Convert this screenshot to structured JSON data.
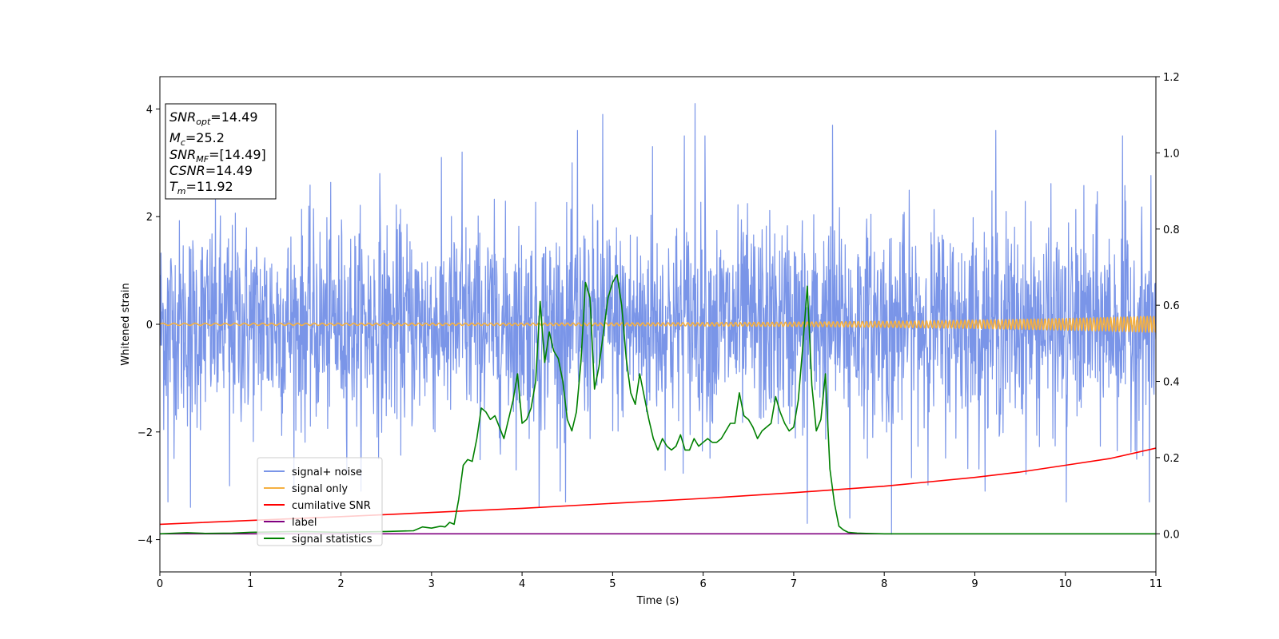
{
  "chart_data": {
    "type": "line",
    "xlabel": "Time (s)",
    "ylabel": "Whitened strain",
    "xlim": [
      0,
      11
    ],
    "ylim": [
      -4.6,
      4.6
    ],
    "y2lim": [
      -0.1,
      1.2
    ],
    "xticks": [
      0,
      1,
      2,
      3,
      4,
      5,
      6,
      7,
      8,
      9,
      10,
      11
    ],
    "yticks": [
      -4,
      -2,
      0,
      2,
      4
    ],
    "y2ticks": [
      0.0,
      0.2,
      0.4,
      0.6,
      0.8,
      1.0,
      1.2
    ],
    "y2tick_labels": [
      "0.0",
      "0.2",
      "0.4",
      "0.6",
      "0.8",
      "1.0",
      "1.2"
    ],
    "grid": false,
    "legend_position": "lower-left",
    "annotation": {
      "snr_opt": {
        "base": "SNR",
        "sub": "opt",
        "value": "=14.49"
      },
      "mc": {
        "base": "M",
        "sub": "c",
        "value": "=25.2"
      },
      "snr_mf": {
        "base": "SNR",
        "sub": "MF",
        "value": "=[14.49]"
      },
      "csnr": {
        "base": "CSNR",
        "value": "=14.49"
      },
      "tm": {
        "base": "T",
        "sub": "m",
        "value": "=11.92"
      }
    },
    "series": [
      {
        "name": "signal+ noise",
        "color": "#7a95e8",
        "axis": "left",
        "kind": "noise",
        "std": 0.95,
        "peaks": [
          [
            0.09,
            -3.3
          ],
          [
            0.34,
            -3.4
          ],
          [
            0.77,
            -3.0
          ],
          [
            2.43,
            2.8
          ],
          [
            3.34,
            3.2
          ],
          [
            4.19,
            -3.4
          ],
          [
            4.48,
            -3.3
          ],
          [
            4.61,
            3.6
          ],
          [
            4.89,
            3.9
          ],
          [
            5.44,
            3.3
          ],
          [
            5.79,
            3.5
          ],
          [
            5.91,
            4.1
          ],
          [
            6.02,
            3.5
          ],
          [
            7.15,
            -3.7
          ],
          [
            7.43,
            3.7
          ],
          [
            7.62,
            -3.6
          ],
          [
            8.08,
            -3.9
          ],
          [
            9.23,
            3.6
          ],
          [
            10.01,
            -3.3
          ],
          [
            10.63,
            3.5
          ],
          [
            10.93,
            -3.3
          ]
        ]
      },
      {
        "name": "signal only",
        "color": "#f5b041",
        "axis": "left",
        "kind": "chirp",
        "amp_start": 0.02,
        "amp_end": 0.15
      },
      {
        "name": "cumilative SNR",
        "color": "#ff0000",
        "axis": "right",
        "x": [
          0,
          1,
          2,
          3,
          4,
          5,
          6,
          7,
          8,
          9,
          9.5,
          10,
          10.5,
          11
        ],
        "y": [
          0.025,
          0.035,
          0.045,
          0.056,
          0.067,
          0.08,
          0.093,
          0.108,
          0.125,
          0.148,
          0.162,
          0.18,
          0.198,
          0.225
        ]
      },
      {
        "name": "label",
        "color": "#800080",
        "axis": "right",
        "x": [
          0,
          11
        ],
        "y": [
          0.0,
          0.0
        ]
      },
      {
        "name": "signal statistics",
        "color": "#008000",
        "axis": "right",
        "x": [
          0,
          0.3,
          0.5,
          0.8,
          1.0,
          1.5,
          2.0,
          2.5,
          2.8,
          2.9,
          3.0,
          3.1,
          3.15,
          3.2,
          3.25,
          3.3,
          3.35,
          3.4,
          3.45,
          3.5,
          3.55,
          3.6,
          3.65,
          3.7,
          3.75,
          3.8,
          3.85,
          3.9,
          3.95,
          4.0,
          4.05,
          4.1,
          4.15,
          4.2,
          4.25,
          4.3,
          4.35,
          4.4,
          4.45,
          4.5,
          4.55,
          4.6,
          4.65,
          4.7,
          4.75,
          4.8,
          4.85,
          4.9,
          4.95,
          5.0,
          5.05,
          5.1,
          5.15,
          5.2,
          5.25,
          5.3,
          5.35,
          5.4,
          5.45,
          5.5,
          5.55,
          5.6,
          5.65,
          5.7,
          5.75,
          5.8,
          5.85,
          5.9,
          5.95,
          6.0,
          6.05,
          6.1,
          6.15,
          6.2,
          6.25,
          6.3,
          6.35,
          6.4,
          6.45,
          6.5,
          6.55,
          6.6,
          6.65,
          6.7,
          6.75,
          6.8,
          6.85,
          6.9,
          6.95,
          7.0,
          7.05,
          7.1,
          7.15,
          7.2,
          7.25,
          7.3,
          7.35,
          7.4,
          7.45,
          7.5,
          7.55,
          7.6,
          7.65,
          7.7,
          7.8,
          8.0,
          9.0,
          11.0
        ],
        "y": [
          0.0,
          0.003,
          0.001,
          0.002,
          0.004,
          0.006,
          0.004,
          0.006,
          0.008,
          0.018,
          0.015,
          0.02,
          0.018,
          0.03,
          0.025,
          0.09,
          0.18,
          0.195,
          0.19,
          0.25,
          0.33,
          0.32,
          0.3,
          0.31,
          0.28,
          0.25,
          0.3,
          0.35,
          0.42,
          0.29,
          0.3,
          0.33,
          0.4,
          0.61,
          0.45,
          0.53,
          0.48,
          0.46,
          0.4,
          0.3,
          0.27,
          0.32,
          0.45,
          0.66,
          0.62,
          0.38,
          0.44,
          0.53,
          0.62,
          0.66,
          0.68,
          0.6,
          0.46,
          0.37,
          0.34,
          0.42,
          0.36,
          0.3,
          0.25,
          0.22,
          0.25,
          0.23,
          0.22,
          0.23,
          0.26,
          0.22,
          0.22,
          0.25,
          0.23,
          0.24,
          0.25,
          0.24,
          0.24,
          0.25,
          0.27,
          0.29,
          0.29,
          0.37,
          0.31,
          0.3,
          0.28,
          0.25,
          0.27,
          0.28,
          0.29,
          0.36,
          0.32,
          0.29,
          0.27,
          0.28,
          0.35,
          0.49,
          0.65,
          0.39,
          0.27,
          0.3,
          0.42,
          0.17,
          0.08,
          0.02,
          0.01,
          0.004,
          0.003,
          0.002,
          0.001,
          0.0,
          0.0,
          0.0
        ]
      }
    ]
  }
}
